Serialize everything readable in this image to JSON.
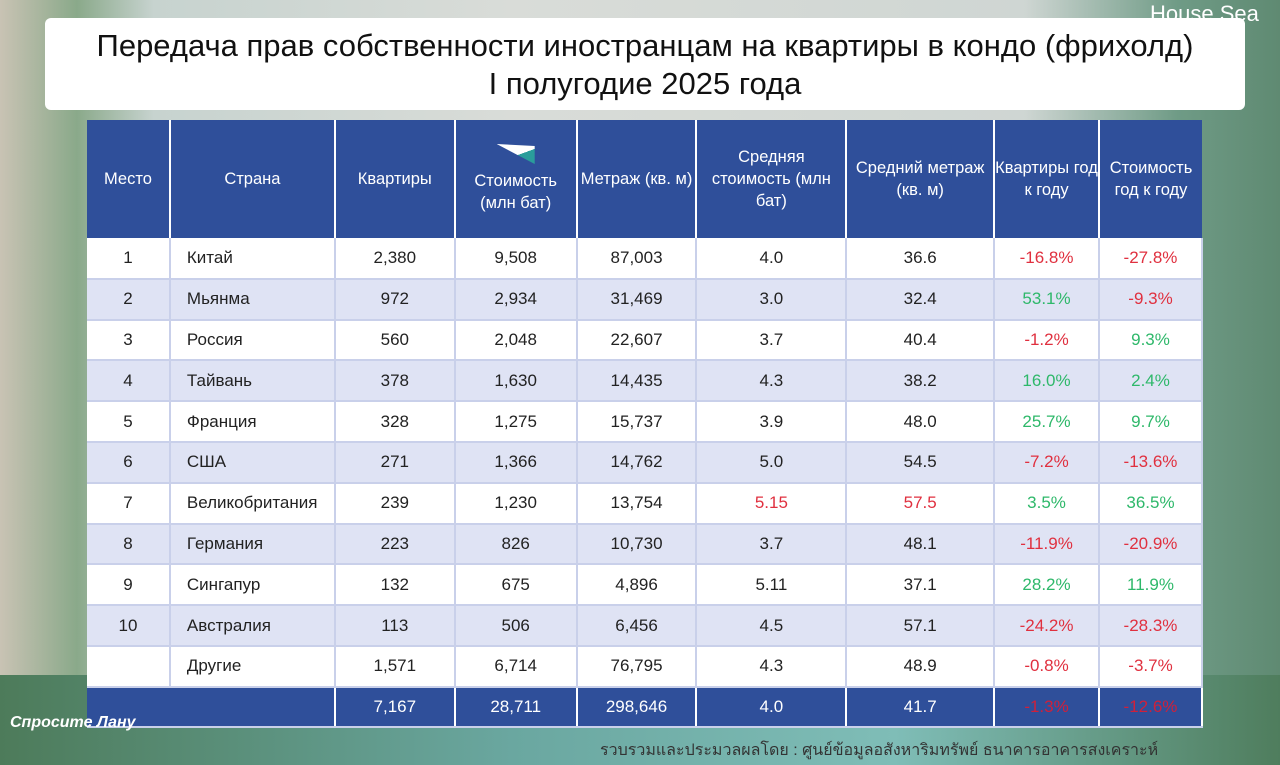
{
  "title": {
    "line1": "Передача прав собственности иностранцам на квартиры в кондо (фрихолд)",
    "line2": "I полугодие 2025 года"
  },
  "logo_top": "House Sea",
  "logo_bottom": "Спросите Лану",
  "headers": [
    "Место",
    "Страна",
    "Квартиры",
    "Стоимость (млн бат)",
    "Метраж (кв. м)",
    "Средняя стоимость (млн бат)",
    "Средний метраж (кв. м)",
    "Квартиры год к году",
    "Стоимость год к году"
  ],
  "rows": [
    [
      "1",
      "Китай",
      "2,380",
      "9,508",
      "87,003",
      "4.0",
      "36.6",
      "-16.8%",
      "-27.8%"
    ],
    [
      "2",
      "Мьянма",
      "972",
      "2,934",
      "31,469",
      "3.0",
      "32.4",
      "53.1%",
      "-9.3%"
    ],
    [
      "3",
      "Россия",
      "560",
      "2,048",
      "22,607",
      "3.7",
      "40.4",
      "-1.2%",
      "9.3%"
    ],
    [
      "4",
      "Тайвань",
      "378",
      "1,630",
      "14,435",
      "4.3",
      "38.2",
      "16.0%",
      "2.4%"
    ],
    [
      "5",
      "Франция",
      "328",
      "1,275",
      "15,737",
      "3.9",
      "48.0",
      "25.7%",
      "9.7%"
    ],
    [
      "6",
      "США",
      "271",
      "1,366",
      "14,762",
      "5.0",
      "54.5",
      "-7.2%",
      "-13.6%"
    ],
    [
      "7",
      "Великобритания",
      "239",
      "1,230",
      "13,754",
      "5.15",
      "57.5",
      "3.5%",
      "36.5%"
    ],
    [
      "8",
      "Германия",
      "223",
      "826",
      "10,730",
      "3.7",
      "48.1",
      "-11.9%",
      "-20.9%"
    ],
    [
      "9",
      "Сингапур",
      "132",
      "675",
      "4,896",
      "5.11",
      "37.1",
      "28.2%",
      "11.9%"
    ],
    [
      "10",
      "Австралия",
      "113",
      "506",
      "6,456",
      "4.5",
      "57.1",
      "-24.2%",
      "-28.3%"
    ],
    [
      "",
      "Другие",
      "1,571",
      "6,714",
      "76,795",
      "4.3",
      "48.9",
      "-0.8%",
      "-3.7%"
    ]
  ],
  "total": [
    "",
    "",
    "7,167",
    "28,711",
    "298,646",
    "4.0",
    "41.7",
    "-1.3%",
    "-12.6%"
  ],
  "footer": "รวบรวมและประมวลผลโดย : ศูนย์ข้อมูลอสังหาริมทรัพย์ ธนาคารอาคารสงเคราะห์",
  "colors": {
    "header": "#2f4f9a",
    "negative": "#e0303f",
    "positive": "#2eb86a",
    "row_alt": "#dfe3f4"
  }
}
